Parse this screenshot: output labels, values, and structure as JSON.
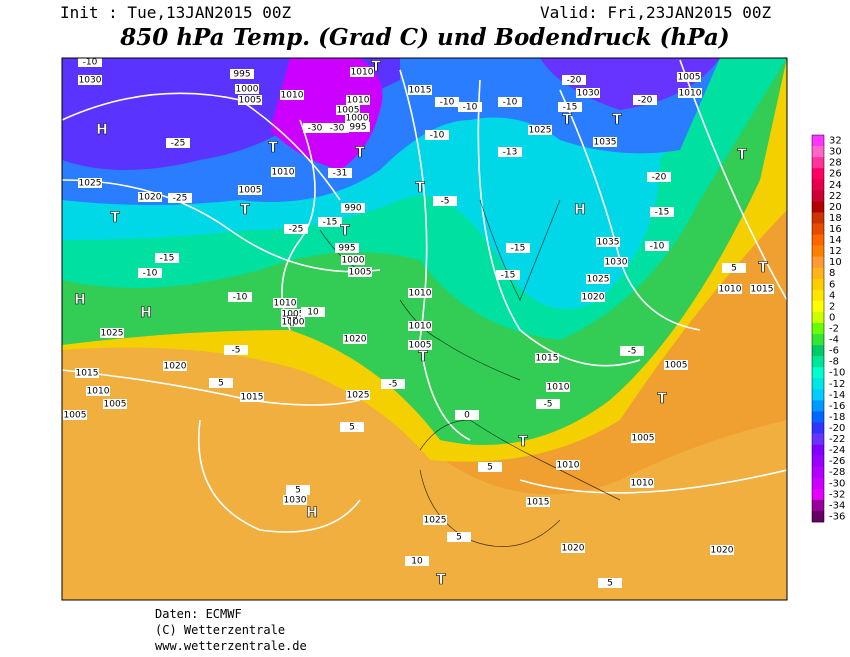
{
  "header": {
    "init": "Init : Tue,13JAN2015 00Z",
    "valid": "Valid: Fri,23JAN2015 00Z",
    "title": "850 hPa Temp. (Grad C) und Bodendruck (hPa)"
  },
  "legend": {
    "levels": [
      32,
      30,
      28,
      26,
      24,
      22,
      20,
      18,
      16,
      14,
      12,
      10,
      8,
      6,
      4,
      2,
      0,
      -2,
      -4,
      -6,
      -8,
      -10,
      -12,
      -14,
      -16,
      -18,
      -20,
      -22,
      -24,
      -26,
      -28,
      -30,
      -32,
      -34,
      -36
    ],
    "colors": [
      "#ff33ff",
      "#ff66cc",
      "#ff3399",
      "#ff0066",
      "#e6004d",
      "#cc0033",
      "#b30000",
      "#cc3300",
      "#e64d00",
      "#ff6600",
      "#ff8000",
      "#ff9933",
      "#ffb31a",
      "#ffcc00",
      "#ffe600",
      "#ffff00",
      "#ccff00",
      "#66ff00",
      "#33e633",
      "#00cc66",
      "#00e699",
      "#00ffcc",
      "#00e6e6",
      "#00ccff",
      "#0099ff",
      "#0066ff",
      "#3333ff",
      "#6633ff",
      "#8000ff",
      "#9900ff",
      "#b300ff",
      "#cc00ff",
      "#e600ff",
      "#990099",
      "#660066"
    ]
  },
  "map": {
    "pressure_labels": [
      1030,
      1025,
      1020,
      1025,
      1020,
      1015,
      1010,
      1005,
      1005,
      1015,
      1030,
      1025,
      1015,
      1010,
      1010,
      1005,
      1005,
      1010,
      1015,
      1010,
      1010,
      1005,
      1020,
      1025,
      1010,
      1005,
      1000,
      1005,
      1000,
      995,
      990,
      1005,
      1010,
      995,
      1000,
      1005,
      1010,
      1010,
      1010,
      1005,
      1000,
      995,
      1015,
      1025,
      1030,
      1035,
      1035,
      1030,
      1025,
      1020,
      1005,
      1010,
      1010,
      1015,
      1020,
      1020
    ],
    "temperature_labels": [
      -10,
      -25,
      -25,
      -30,
      -30,
      -31,
      -25,
      -15,
      -15,
      -10,
      -10,
      -5,
      10,
      5,
      -5,
      5,
      0,
      5,
      5,
      5,
      10,
      5,
      -10,
      -10,
      -10,
      -10,
      -5,
      -13,
      -15,
      -15,
      -15,
      -20,
      -20,
      -20,
      -15,
      -10,
      -5,
      -5,
      5
    ],
    "centers": [
      "H",
      "T",
      "T",
      "H",
      "H",
      "T",
      "T",
      "T",
      "T",
      "T",
      "T",
      "H",
      "T",
      "T",
      "T",
      "T",
      "H",
      "T",
      "T",
      "T",
      "T"
    ]
  },
  "footer": {
    "data": "Daten: ECMWF",
    "copyright": "(C) Wetterzentrale",
    "url": "www.wetterzentrale.de"
  }
}
